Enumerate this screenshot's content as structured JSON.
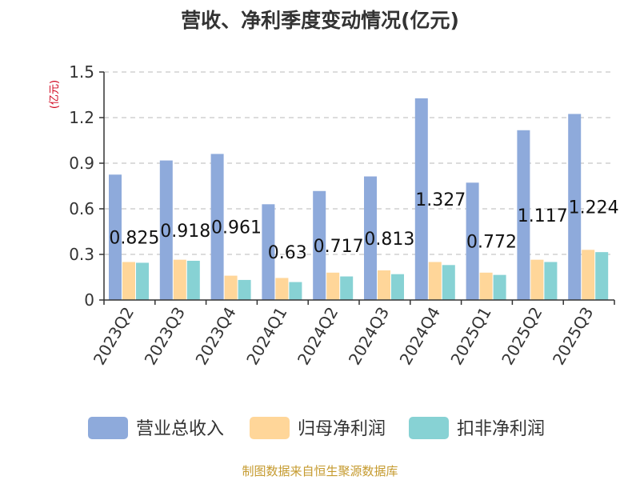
{
  "chart_data": {
    "type": "bar",
    "title": "营收、净利季度变动情况(亿元)",
    "ylabel": "(亿元)",
    "xlabel": "",
    "categories": [
      "2023Q2",
      "2023Q3",
      "2023Q4",
      "2024Q1",
      "2024Q2",
      "2024Q3",
      "2024Q4",
      "2025Q1",
      "2025Q2",
      "2025Q3"
    ],
    "series": [
      {
        "name": "营业总收入",
        "color": "#8eaadb",
        "values": [
          0.825,
          0.918,
          0.961,
          0.63,
          0.717,
          0.813,
          1.327,
          0.772,
          1.117,
          1.224
        ]
      },
      {
        "name": "归母净利润",
        "color": "#ffd699",
        "values": [
          0.25,
          0.265,
          0.16,
          0.145,
          0.18,
          0.195,
          0.25,
          0.18,
          0.265,
          0.33
        ]
      },
      {
        "name": "扣非净利润",
        "color": "#87d2d4",
        "values": [
          0.245,
          0.258,
          0.132,
          0.118,
          0.155,
          0.17,
          0.23,
          0.165,
          0.25,
          0.315
        ]
      }
    ],
    "data_labels": [
      "0.825",
      "0.918",
      "0.961",
      "0.63",
      "0.717",
      "0.813",
      "1.327",
      "0.772",
      "1.117",
      "1.224"
    ],
    "y_ticks": [
      "0",
      "0.3",
      "0.6",
      "0.9",
      "1.2",
      "1.5"
    ],
    "ylim": [
      0,
      1.5
    ],
    "grid": true,
    "legend_position": "bottom",
    "source": "制图数据来自恒生聚源数据库"
  }
}
